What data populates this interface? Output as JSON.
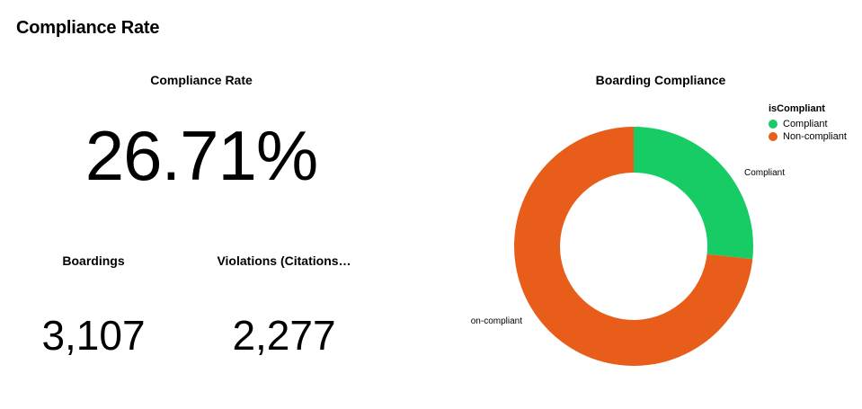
{
  "page": {
    "title": "Compliance Rate"
  },
  "kpis": {
    "rate": {
      "title": "Compliance Rate",
      "value": "26.71%"
    },
    "boardings": {
      "title": "Boardings",
      "value": "3,107"
    },
    "violations": {
      "title": "Violations (Citations…",
      "value": "2,277"
    }
  },
  "chart_data": {
    "type": "pie",
    "title": "Boarding Compliance",
    "legend_title": "isCompliant",
    "legend_position": "top-right",
    "categories": [
      "Compliant",
      "Non-compliant"
    ],
    "values": [
      26.71,
      73.29
    ],
    "slice_labels": [
      "Compliant",
      "on-compliant"
    ],
    "colors": [
      "#17cc64",
      "#e85d1a"
    ],
    "donut": true
  }
}
